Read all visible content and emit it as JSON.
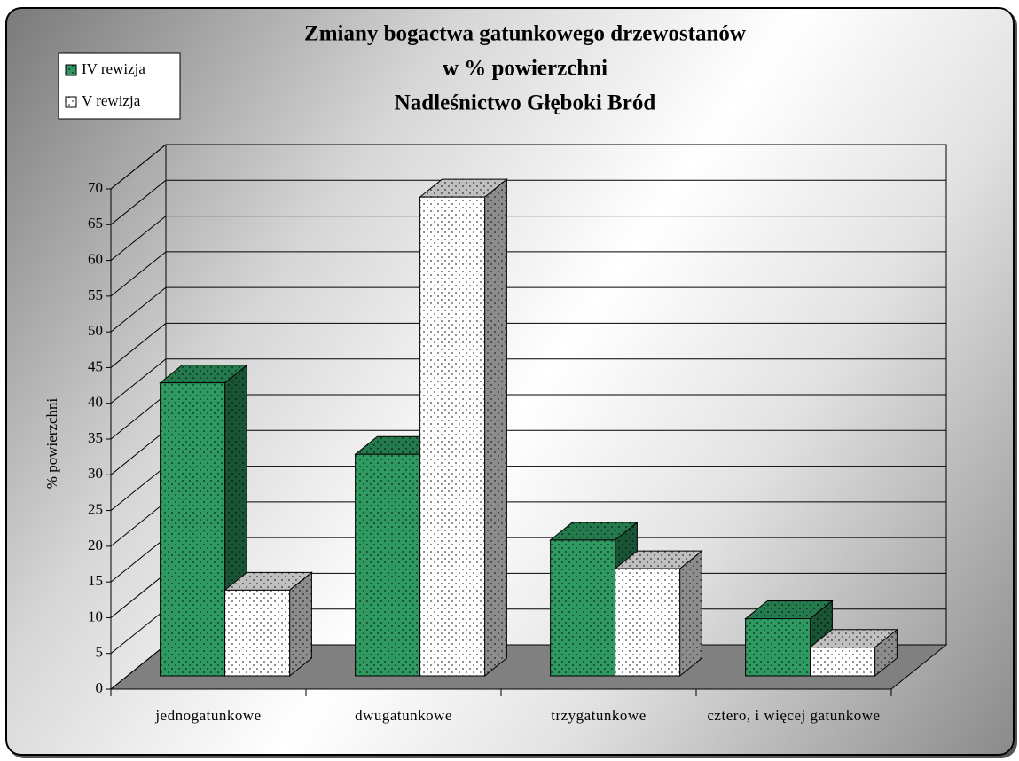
{
  "chart_data": {
    "type": "bar3d",
    "title": [
      "Zmiany bogactwa gatunkowego drzewostanów",
      "w % powierzchni",
      "Nadleśnictwo Głęboki Bród"
    ],
    "ylabel": "% powierzchni",
    "categories": [
      "jednogatunkowe",
      "dwugatunkowe",
      "trzygatunkowe",
      "cztero, i więcej gatunkowe"
    ],
    "series": [
      {
        "name": "IV rewizja",
        "color": "#2e9960",
        "values": [
          41,
          31,
          19,
          8
        ]
      },
      {
        "name": "V rewizja",
        "color": "#ffffff",
        "values": [
          12,
          67,
          15,
          4
        ]
      }
    ],
    "ylim": [
      0,
      70
    ],
    "yticks": [
      0,
      5,
      10,
      15,
      20,
      25,
      30,
      35,
      40,
      45,
      50,
      55,
      60,
      65,
      70
    ],
    "grid": true,
    "legend": "top-left"
  }
}
